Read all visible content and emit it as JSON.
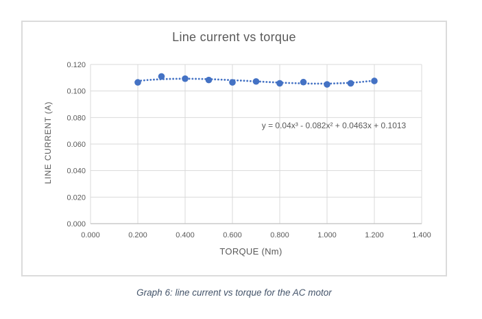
{
  "figure": {
    "caption": "Graph 6: line current vs torque for the AC motor"
  },
  "chart_data": {
    "type": "scatter",
    "title": "Line current vs torque",
    "xlabel": "TORQUE (Nm)",
    "ylabel": "LINE CURRENT (A)",
    "xlim": [
      0,
      1.4
    ],
    "ylim": [
      0,
      0.12
    ],
    "grid": true,
    "legend": "none",
    "x_ticks": [
      "0.000",
      "0.200",
      "0.400",
      "0.600",
      "0.800",
      "1.000",
      "1.200",
      "1.400"
    ],
    "x_tick_values": [
      0,
      0.2,
      0.4,
      0.6,
      0.8,
      1.0,
      1.2,
      1.4
    ],
    "y_ticks": [
      "0.000",
      "0.020",
      "0.040",
      "0.060",
      "0.080",
      "0.100",
      "0.120"
    ],
    "y_tick_values": [
      0,
      0.02,
      0.04,
      0.06,
      0.08,
      0.1,
      0.12
    ],
    "series": [
      {
        "name": "line current",
        "x": [
          0.2,
          0.3,
          0.4,
          0.5,
          0.6,
          0.7,
          0.8,
          0.9,
          1.0,
          1.1,
          1.2
        ],
        "y": [
          0.1065,
          0.111,
          0.1093,
          0.1083,
          0.1065,
          0.1072,
          0.1058,
          0.1067,
          0.105,
          0.1058,
          0.1076
        ]
      }
    ],
    "trendline": {
      "type": "polynomial",
      "order": 3,
      "coefficients": [
        0.04,
        -0.082,
        0.0463,
        0.1013
      ],
      "x_range": [
        0.2,
        1.2
      ],
      "style": "dotted",
      "equation": "y = 0.04x³ - 0.082x² + 0.0463x + 0.1013"
    },
    "colors": {
      "marker": "#4472C4",
      "trendline": "#4472C4",
      "grid": "#D9D9D9",
      "axis": "#BFBFBF",
      "text": "#595959",
      "chart_border": "#DBDBDB",
      "caption": "#44546A"
    }
  }
}
